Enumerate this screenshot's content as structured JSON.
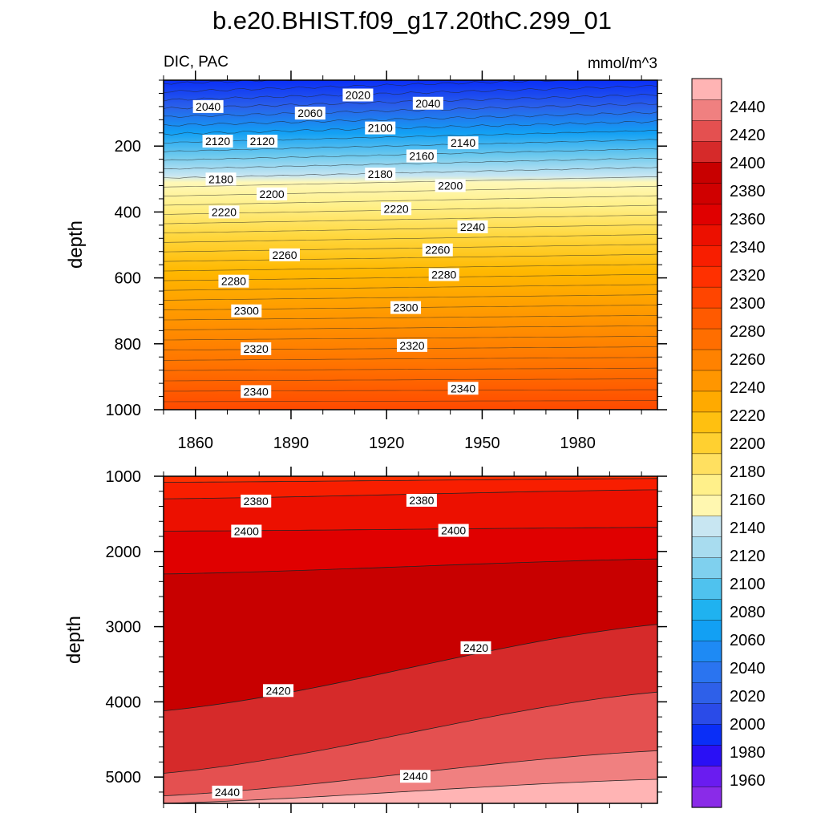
{
  "chart_data": {
    "type": "heatmap",
    "title": "b.e20.BHIST.f09_g17.20thC.299_01",
    "left_subtitle": "DIC, PAC",
    "right_subtitle": "mmol/m^3",
    "ylabel": "depth",
    "x_ticks": [
      1860,
      1890,
      1920,
      1950,
      1980
    ],
    "xlim": [
      1850,
      2005
    ],
    "panels": [
      {
        "name": "upper",
        "ylim": [
          0,
          1000
        ],
        "y_ticks": [
          200,
          400,
          600,
          800,
          1000
        ],
        "contour_labels": [
          {
            "value": "2040",
            "x": 1864,
            "y": 80
          },
          {
            "value": "2060",
            "x": 1896,
            "y": 100
          },
          {
            "value": "2020",
            "x": 1911,
            "y": 45
          },
          {
            "value": "2040",
            "x": 1933,
            "y": 70
          },
          {
            "value": "2100",
            "x": 1918,
            "y": 145
          },
          {
            "value": "2120",
            "x": 1867,
            "y": 185
          },
          {
            "value": "2120",
            "x": 1881,
            "y": 185
          },
          {
            "value": "2140",
            "x": 1944,
            "y": 190
          },
          {
            "value": "2160",
            "x": 1931,
            "y": 230
          },
          {
            "value": "2180",
            "x": 1868,
            "y": 300
          },
          {
            "value": "2180",
            "x": 1918,
            "y": 285
          },
          {
            "value": "2200",
            "x": 1884,
            "y": 345
          },
          {
            "value": "2200",
            "x": 1940,
            "y": 320
          },
          {
            "value": "2220",
            "x": 1869,
            "y": 400
          },
          {
            "value": "2220",
            "x": 1923,
            "y": 390
          },
          {
            "value": "2240",
            "x": 1947,
            "y": 445
          },
          {
            "value": "2260",
            "x": 1888,
            "y": 530
          },
          {
            "value": "2260",
            "x": 1936,
            "y": 515
          },
          {
            "value": "2280",
            "x": 1872,
            "y": 610
          },
          {
            "value": "2280",
            "x": 1938,
            "y": 590
          },
          {
            "value": "2300",
            "x": 1876,
            "y": 700
          },
          {
            "value": "2300",
            "x": 1926,
            "y": 690
          },
          {
            "value": "2320",
            "x": 1879,
            "y": 815
          },
          {
            "value": "2320",
            "x": 1928,
            "y": 805
          },
          {
            "value": "2340",
            "x": 1879,
            "y": 945
          },
          {
            "value": "2340",
            "x": 1944,
            "y": 935
          }
        ]
      },
      {
        "name": "lower",
        "ylim": [
          1000,
          5350
        ],
        "y_ticks": [
          1000,
          2000,
          3000,
          4000,
          5000
        ],
        "contour_labels": [
          {
            "value": "2380",
            "x": 1879,
            "y": 1330
          },
          {
            "value": "2380",
            "x": 1931,
            "y": 1320
          },
          {
            "value": "2400",
            "x": 1876,
            "y": 1730
          },
          {
            "value": "2400",
            "x": 1941,
            "y": 1720
          },
          {
            "value": "2420",
            "x": 1886,
            "y": 3850
          },
          {
            "value": "2420",
            "x": 1948,
            "y": 3280
          },
          {
            "value": "2440",
            "x": 1870,
            "y": 5200
          },
          {
            "value": "2440",
            "x": 1929,
            "y": 4990
          }
        ]
      }
    ],
    "colorbar": {
      "levels": [
        1960,
        1980,
        2000,
        2020,
        2040,
        2060,
        2080,
        2100,
        2120,
        2140,
        2160,
        2180,
        2200,
        2220,
        2240,
        2260,
        2280,
        2300,
        2320,
        2340,
        2360,
        2380,
        2400,
        2420,
        2440
      ],
      "colors": [
        "#8a2be8",
        "#6a1cf0",
        "#2a10f5",
        "#0a2ef7",
        "#2a4be8",
        "#2e60e9",
        "#2a74f0",
        "#1e8af4",
        "#12a0f4",
        "#1fb2f0",
        "#4fc2ee",
        "#7fd0ee",
        "#a8dcef",
        "#c8e6f2",
        "#fff7b0",
        "#fff08a",
        "#ffe060",
        "#ffd030",
        "#ffc010",
        "#ffaa00",
        "#ff9600",
        "#ff8200",
        "#ff6e00",
        "#ff5a00",
        "#ff4500",
        "#ff3000",
        "#f81e00",
        "#ec1000",
        "#e00000",
        "#d00000",
        "#c80000",
        "#d62a2a",
        "#e45050",
        "#f08080",
        "#ffb4b4"
      ]
    }
  }
}
